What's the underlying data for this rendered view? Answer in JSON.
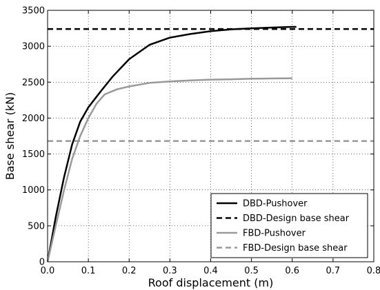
{
  "chart_data": {
    "type": "line",
    "xlabel": "Roof displacement (m)",
    "ylabel": "Base shear (kN)",
    "xlim": [
      0.0,
      0.8
    ],
    "ylim": [
      0,
      3500
    ],
    "xticks": [
      "0.0",
      "0.1",
      "0.2",
      "0.3",
      "0.4",
      "0.5",
      "0.6",
      "0.7",
      "0.8"
    ],
    "yticks": [
      "0",
      "500",
      "1000",
      "1500",
      "2000",
      "2500",
      "3000",
      "3500"
    ],
    "grid": true,
    "grid_style": "dotted",
    "legend_position": "lower-right",
    "series": [
      {
        "name": "DBD-Pushover",
        "color": "#000000",
        "style": "solid",
        "x": [
          0.0,
          0.02,
          0.04,
          0.06,
          0.08,
          0.1,
          0.13,
          0.16,
          0.2,
          0.25,
          0.3,
          0.35,
          0.4,
          0.45,
          0.5,
          0.55,
          0.6,
          0.61
        ],
        "y": [
          0,
          620,
          1170,
          1630,
          1950,
          2150,
          2370,
          2580,
          2820,
          3020,
          3120,
          3170,
          3210,
          3235,
          3250,
          3260,
          3270,
          3270
        ]
      },
      {
        "name": "DBD-Design base shear",
        "color": "#000000",
        "style": "dashed",
        "x": [
          0.0,
          0.8
        ],
        "y": [
          3240,
          3240
        ]
      },
      {
        "name": "FBD-Pushover",
        "color": "#999999",
        "style": "solid",
        "x": [
          0.0,
          0.02,
          0.04,
          0.06,
          0.08,
          0.1,
          0.12,
          0.14,
          0.17,
          0.2,
          0.25,
          0.3,
          0.35,
          0.4,
          0.45,
          0.5,
          0.55,
          0.6
        ],
        "y": [
          0,
          500,
          990,
          1430,
          1750,
          2000,
          2200,
          2330,
          2400,
          2440,
          2490,
          2510,
          2525,
          2535,
          2540,
          2548,
          2552,
          2555
        ]
      },
      {
        "name": "FBD-Design base shear",
        "color": "#999999",
        "style": "dashed",
        "x": [
          0.0,
          0.8
        ],
        "y": [
          1680,
          1680
        ]
      }
    ]
  }
}
